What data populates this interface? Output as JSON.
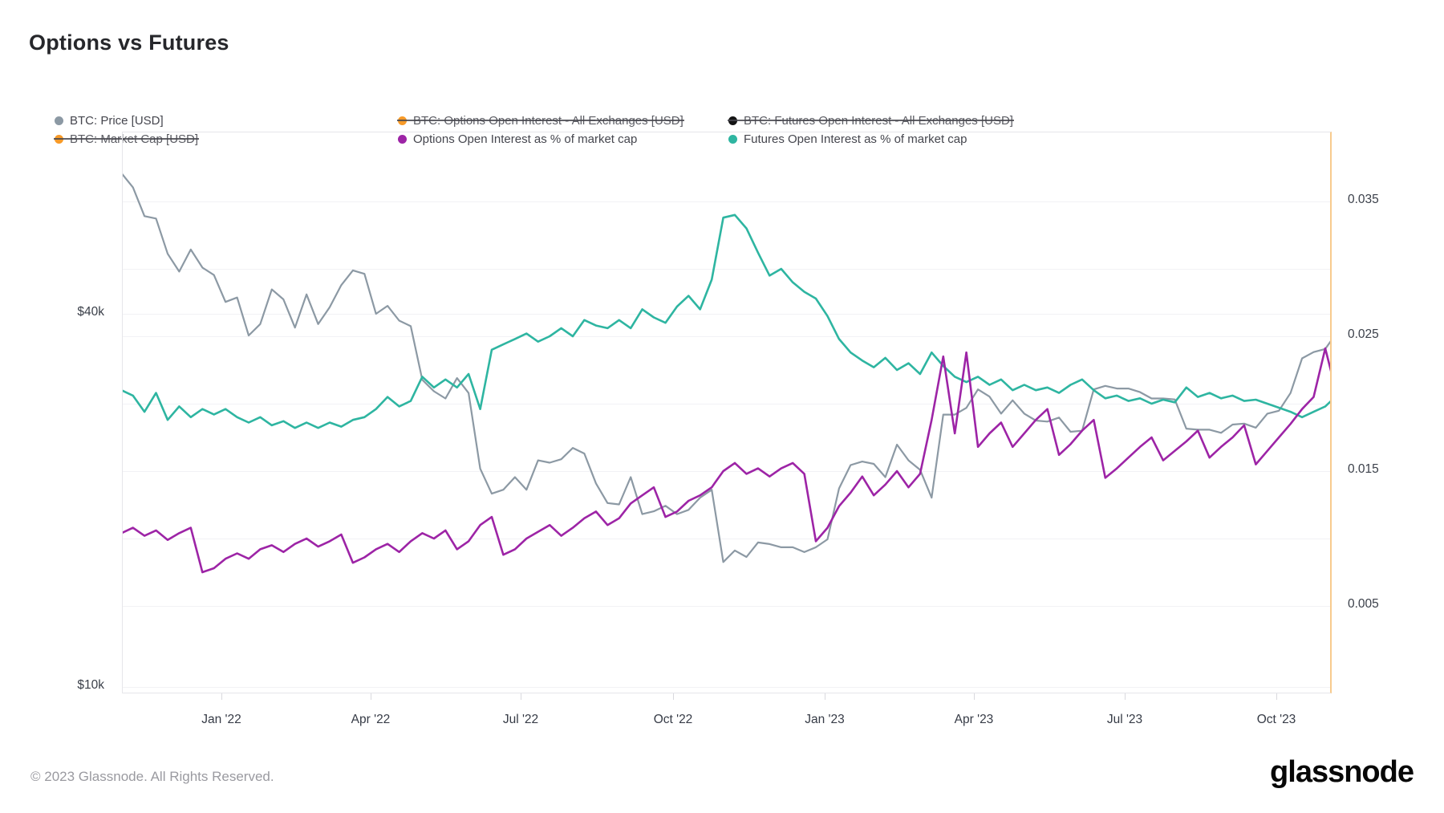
{
  "title": "Options vs Futures",
  "legend": {
    "rows": [
      [
        {
          "id": "btc-price",
          "label": "BTC: Price [USD]",
          "color": "#8c99a4",
          "struck": false
        },
        {
          "id": "options-oi-usd",
          "label": "BTC: Options Open Interest - All Exchanges [USD]",
          "color": "#f79a28",
          "struck": true
        },
        {
          "id": "futures-oi-usd",
          "label": "BTC: Futures Open Interest - All Exchanges [USD]",
          "color": "#141414",
          "struck": true
        }
      ],
      [
        {
          "id": "market-cap",
          "label": "BTC: Market Cap [USD]",
          "color": "#f79a28",
          "struck": true
        },
        {
          "id": "options-oi-pct",
          "label": "Options Open Interest as % of market cap",
          "color": "#9d24a6",
          "struck": false
        },
        {
          "id": "futures-oi-pct",
          "label": "Futures Open Interest as % of market cap",
          "color": "#2eb5a1",
          "struck": false
        }
      ]
    ]
  },
  "footer": {
    "copyright": "© 2023 Glassnode. All Rights Reserved.",
    "logo_text": "glassnode"
  },
  "chart_data": {
    "type": "line",
    "title": "Options vs Futures",
    "x_tick_labels": [
      "Jan '22",
      "Apr '22",
      "Jul '22",
      "Oct '22",
      "Jan '23",
      "Apr '23",
      "Jul '23",
      "Oct '23"
    ],
    "x_range": [
      "2021-11-01",
      "2023-11-06"
    ],
    "left_axis": {
      "type": "log",
      "title": "BTC Price [USD]",
      "tick_labels": [
        "$40k",
        "$10k"
      ],
      "tick_values_usd": [
        40000,
        10000
      ]
    },
    "right_axis": {
      "type": "linear",
      "title": "Open Interest as fraction of market cap",
      "tick_labels": [
        "0.035",
        "0.025",
        "0.015",
        "0.005"
      ],
      "tick_values": [
        0.035,
        0.025,
        0.015,
        0.005
      ]
    },
    "grid": true,
    "legend_position": "top",
    "disabled_series": [
      "BTC: Options Open Interest - All Exchanges [USD]",
      "BTC: Futures Open Interest - All Exchanges [USD]",
      "BTC: Market Cap [USD]"
    ],
    "series": [
      {
        "name": "BTC: Price [USD]",
        "axis": "left",
        "color": "#8c99a4",
        "unit": "USD (thousands)",
        "start_date": "2021-11-01",
        "interval_days": 7,
        "values": [
          67.5,
          64.0,
          57.5,
          57.0,
          50.0,
          46.8,
          50.8,
          47.5,
          46.2,
          41.8,
          42.5,
          36.9,
          38.5,
          43.8,
          42.2,
          38.0,
          43.0,
          38.5,
          41.0,
          44.5,
          47.0,
          46.4,
          40.0,
          41.2,
          39.0,
          38.2,
          31.3,
          30.0,
          29.2,
          31.5,
          29.8,
          22.5,
          20.5,
          20.8,
          21.8,
          20.8,
          23.2,
          23.0,
          23.3,
          24.3,
          23.8,
          21.3,
          19.8,
          19.7,
          21.8,
          19.0,
          19.2,
          19.6,
          19.0,
          19.3,
          20.2,
          20.8,
          15.9,
          16.6,
          16.2,
          17.1,
          17.0,
          16.8,
          16.8,
          16.5,
          16.8,
          17.3,
          20.9,
          22.8,
          23.1,
          22.9,
          21.8,
          24.6,
          23.2,
          22.4,
          20.2,
          27.5,
          27.5,
          28.2,
          30.2,
          29.4,
          27.6,
          29.0,
          27.6,
          26.9,
          26.8,
          27.2,
          25.8,
          25.9,
          30.2,
          30.6,
          30.3,
          30.3,
          29.9,
          29.2,
          29.2,
          29.1,
          26.1,
          26.0,
          26.0,
          25.7,
          26.5,
          26.6,
          26.2,
          27.6,
          27.9,
          29.8,
          33.9,
          34.7,
          35.1,
          37.3
        ]
      },
      {
        "name": "Futures Open Interest as % of market cap",
        "axis": "right",
        "color": "#2eb5a1",
        "unit": "fraction of market cap",
        "start_date": "2021-11-01",
        "interval_days": 7,
        "values": [
          0.021,
          0.0206,
          0.0194,
          0.0208,
          0.0188,
          0.0198,
          0.019,
          0.0196,
          0.0192,
          0.0196,
          0.019,
          0.0186,
          0.019,
          0.0184,
          0.0187,
          0.0182,
          0.0186,
          0.0182,
          0.0186,
          0.0183,
          0.0188,
          0.019,
          0.0196,
          0.0205,
          0.0198,
          0.0202,
          0.022,
          0.0212,
          0.0218,
          0.0212,
          0.0222,
          0.0196,
          0.024,
          0.0244,
          0.0248,
          0.0252,
          0.0246,
          0.025,
          0.0256,
          0.025,
          0.0262,
          0.0258,
          0.0256,
          0.0262,
          0.0256,
          0.027,
          0.0264,
          0.026,
          0.0272,
          0.028,
          0.027,
          0.0292,
          0.0338,
          0.034,
          0.033,
          0.0312,
          0.0295,
          0.03,
          0.029,
          0.0283,
          0.0278,
          0.0265,
          0.0248,
          0.0238,
          0.0232,
          0.0227,
          0.0234,
          0.0225,
          0.023,
          0.0222,
          0.0238,
          0.0228,
          0.022,
          0.0216,
          0.022,
          0.0214,
          0.0218,
          0.021,
          0.0214,
          0.021,
          0.0212,
          0.0208,
          0.0214,
          0.0218,
          0.021,
          0.0204,
          0.0206,
          0.0202,
          0.0204,
          0.02,
          0.0203,
          0.0201,
          0.0212,
          0.0205,
          0.0208,
          0.0204,
          0.0206,
          0.0202,
          0.0203,
          0.02,
          0.0197,
          0.0194,
          0.019,
          0.0194,
          0.0198,
          0.0206
        ]
      },
      {
        "name": "Options Open Interest as % of market cap",
        "axis": "right",
        "color": "#9d24a6",
        "unit": "fraction of market cap",
        "start_date": "2021-11-01",
        "interval_days": 7,
        "values": [
          0.0104,
          0.0108,
          0.0102,
          0.0106,
          0.0099,
          0.0104,
          0.0108,
          0.0075,
          0.0078,
          0.0085,
          0.0089,
          0.0085,
          0.0092,
          0.0095,
          0.009,
          0.0096,
          0.01,
          0.0094,
          0.0098,
          0.0103,
          0.0082,
          0.0086,
          0.0092,
          0.0096,
          0.009,
          0.0098,
          0.0104,
          0.01,
          0.0106,
          0.0092,
          0.0098,
          0.011,
          0.0116,
          0.0088,
          0.0092,
          0.01,
          0.0105,
          0.011,
          0.0102,
          0.0108,
          0.0115,
          0.012,
          0.011,
          0.0115,
          0.0126,
          0.0132,
          0.0138,
          0.0116,
          0.012,
          0.0128,
          0.0132,
          0.0138,
          0.015,
          0.0156,
          0.0148,
          0.0152,
          0.0146,
          0.0152,
          0.0156,
          0.0148,
          0.0098,
          0.0108,
          0.0124,
          0.0134,
          0.0146,
          0.0132,
          0.014,
          0.015,
          0.0138,
          0.0148,
          0.0188,
          0.0235,
          0.0178,
          0.0238,
          0.0168,
          0.0178,
          0.0186,
          0.0168,
          0.0178,
          0.0188,
          0.0196,
          0.0162,
          0.017,
          0.018,
          0.0188,
          0.0145,
          0.0152,
          0.016,
          0.0168,
          0.0175,
          0.0158,
          0.0165,
          0.0172,
          0.018,
          0.016,
          0.0168,
          0.0175,
          0.0184,
          0.0155,
          0.0165,
          0.0175,
          0.0185,
          0.0196,
          0.0205,
          0.0241,
          0.0207
        ]
      }
    ]
  }
}
